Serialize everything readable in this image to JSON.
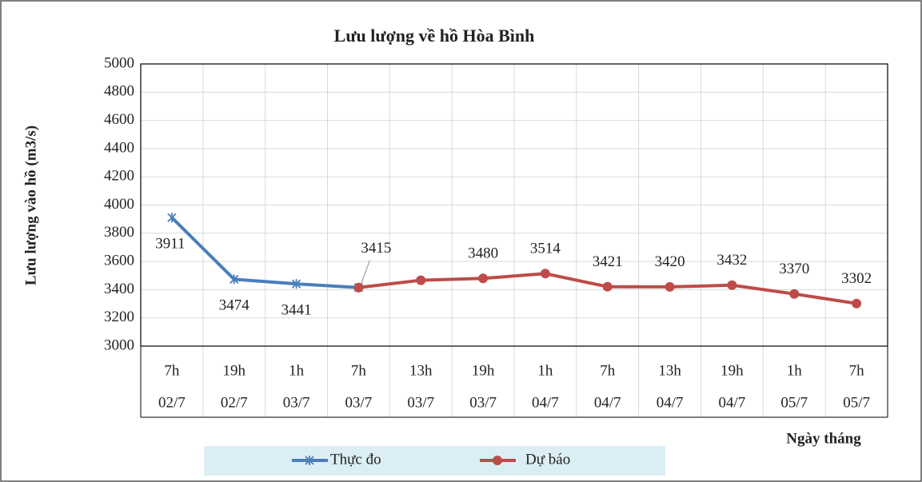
{
  "chart_data": {
    "type": "line",
    "title": "Lưu lượng về hồ Hòa Bình",
    "y_label": "Lưu lượng vào hồ (m3/s)",
    "x_label": "Ngày tháng",
    "categories": [
      [
        "7h",
        "02/7"
      ],
      [
        "19h",
        "02/7"
      ],
      [
        "1h",
        "03/7"
      ],
      [
        "7h",
        "03/7"
      ],
      [
        "13h",
        "03/7"
      ],
      [
        "19h",
        "03/7"
      ],
      [
        "1h",
        "04/7"
      ],
      [
        "7h",
        "04/7"
      ],
      [
        "13h",
        "04/7"
      ],
      [
        "19h",
        "04/7"
      ],
      [
        "1h",
        "05/7"
      ],
      [
        "7h",
        "05/7"
      ]
    ],
    "series": [
      {
        "name": "Thực đo",
        "color": "#4a7ebb",
        "marker": "star",
        "values": [
          3911,
          3474,
          3441,
          3415,
          null,
          null,
          null,
          null,
          null,
          null,
          null,
          null
        ],
        "value_labels": [
          "3911",
          "3474",
          "3441",
          null,
          null,
          null,
          null,
          null,
          null,
          null,
          null,
          null
        ]
      },
      {
        "name": "Dự báo",
        "color": "#be4b48",
        "marker": "circle",
        "values": [
          null,
          null,
          null,
          3415,
          3467,
          3480,
          3514,
          3421,
          3420,
          3432,
          3370,
          3302
        ],
        "value_labels": [
          null,
          null,
          null,
          "3415",
          null,
          "3480",
          "3514",
          "3421",
          "3420",
          "3432",
          "3370",
          "3302"
        ]
      }
    ],
    "ylim": [
      3000,
      5000
    ],
    "yticks": [
      3000,
      3200,
      3400,
      3600,
      3800,
      4000,
      4200,
      4400,
      4600,
      4800,
      5000
    ],
    "grid": true,
    "legend": "bottom"
  }
}
